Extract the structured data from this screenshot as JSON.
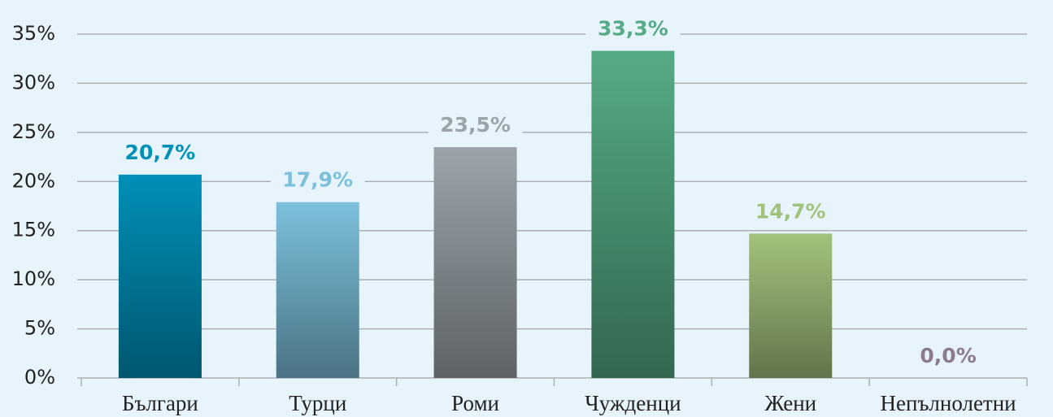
{
  "chart_data": {
    "type": "bar",
    "categories": [
      "Българи",
      "Турци",
      "Роми",
      "Чужденци",
      "Жени",
      "Непълнолетни"
    ],
    "values": [
      20.7,
      17.9,
      23.5,
      33.3,
      14.7,
      0.0
    ],
    "value_labels": [
      "20,7%",
      "17,9%",
      "23,5%",
      "33,3%",
      "14,7%",
      "0,0%"
    ],
    "colors": [
      "#0090b8",
      "#7cc0dc",
      "#9ba4aa",
      "#55ab85",
      "#a2c27c",
      "#8e7a8e"
    ],
    "ylim": [
      0,
      35
    ],
    "yticks": [
      {
        "value": 0,
        "label": "0%"
      },
      {
        "value": 5,
        "label": "5%"
      },
      {
        "value": 10,
        "label": "10%"
      },
      {
        "value": 15,
        "label": "15%"
      },
      {
        "value": 20,
        "label": "20%"
      },
      {
        "value": 25,
        "label": "25%"
      },
      {
        "value": 30,
        "label": "30%"
      },
      {
        "value": 35,
        "label": "35%"
      }
    ],
    "grid": true
  }
}
